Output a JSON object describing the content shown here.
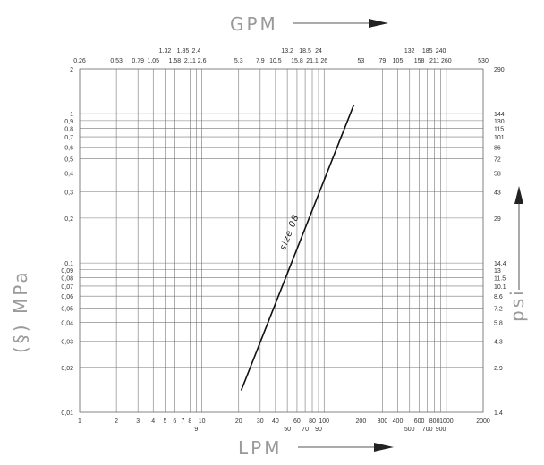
{
  "chart_data": {
    "type": "line",
    "top_axis_label": "GPM",
    "bottom_axis_label": "LPM",
    "left_axis_label": "(§) MPa",
    "right_axis_label": "psi",
    "x_scale": "log",
    "y_scale": "log",
    "xlim": [
      1,
      2000
    ],
    "ylim": [
      0.01,
      2
    ],
    "grid": true,
    "x_ticks_bottom": [
      "1",
      "2",
      "3",
      "4",
      "5",
      "6",
      "7",
      "8",
      "9",
      "10",
      "20",
      "30",
      "40",
      "50",
      "60",
      "70",
      "80",
      "90",
      "100",
      "200",
      "300",
      "400",
      "500",
      "600",
      "700",
      "800",
      "900",
      "1000",
      "2000"
    ],
    "x_ticks_top": [
      "0.26",
      "0.53",
      "0.79",
      "1.05",
      "1.32",
      "1.58",
      "1.85",
      "2.11",
      "2.4",
      "2.6",
      "5.3",
      "7.9",
      "10.5",
      "13.2",
      "15.8",
      "18.5",
      "21.1",
      "24",
      "26",
      "53",
      "79",
      "105",
      "132",
      "158",
      "185",
      "211",
      "240",
      "260",
      "530"
    ],
    "y_ticks_left": [
      "0,01",
      "0,02",
      "0,03",
      "0,04",
      "0,05",
      "0,06",
      "0,07",
      "0,08",
      "0,09",
      "0,1",
      "0,2",
      "0,3",
      "0,4",
      "0,5",
      "0,6",
      "0,7",
      "0,8",
      "0,9",
      "1",
      "2"
    ],
    "y_ticks_right": [
      "1.4",
      "2.9",
      "4.3",
      "5.8",
      "7.2",
      "8.6",
      "10.1",
      "11.5",
      "13",
      "14.4",
      "29",
      "43",
      "58",
      "72",
      "86",
      "101",
      "115",
      "130",
      "144",
      "290"
    ],
    "series": [
      {
        "name": "size 08",
        "x": [
          21,
          175
        ],
        "y": [
          0.014,
          1.15
        ]
      }
    ]
  }
}
